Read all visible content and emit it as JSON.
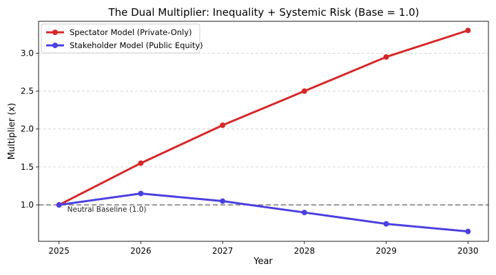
{
  "chart_data": {
    "type": "line",
    "title": "The Dual Multiplier: Inequality + Systemic Risk (Base = 1.0)",
    "xlabel": "Year",
    "ylabel": "Multiplier (x)",
    "x": [
      2025,
      2026,
      2027,
      2028,
      2029,
      2030
    ],
    "x_ticks": [
      "2025",
      "2026",
      "2027",
      "2028",
      "2029",
      "2030"
    ],
    "y_ticks": [
      "1.0",
      "1.5",
      "2.0",
      "2.5",
      "3.0"
    ],
    "xlim": [
      2024.75,
      2030.25
    ],
    "ylim": [
      0.52,
      3.42
    ],
    "grid": true,
    "legend_position": "top-left",
    "series": [
      {
        "name": "Spectator Model (Private-Only)",
        "color": "#d62728",
        "values": [
          1.0,
          1.55,
          2.05,
          2.5,
          2.95,
          3.3
        ]
      },
      {
        "name": "Stakeholder Model (Public Equity)",
        "color": "#4a3fe0",
        "values": [
          1.0,
          1.15,
          1.05,
          0.9,
          0.75,
          0.65
        ]
      }
    ],
    "baseline": {
      "value": 1.0,
      "label": "Neutral Baseline (1.0)",
      "color": "#777777"
    }
  }
}
